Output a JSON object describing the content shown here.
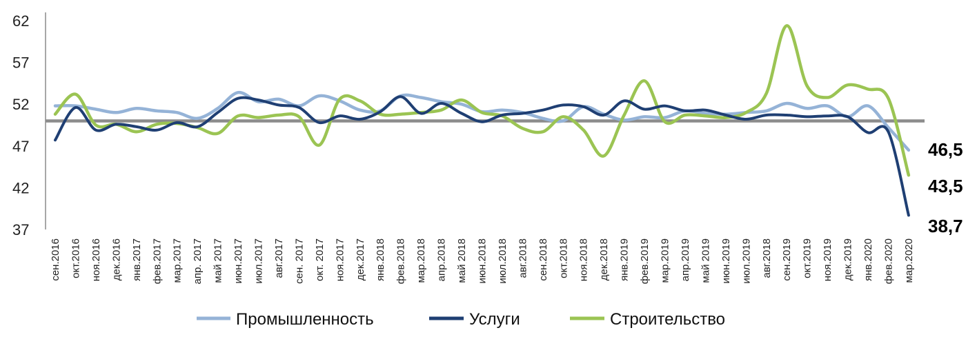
{
  "chart_data": {
    "type": "line",
    "title": "",
    "xlabel": "",
    "ylabel": "",
    "ylim": [
      37,
      62
    ],
    "yticks": [
      37,
      42,
      47,
      52,
      57,
      62
    ],
    "reference_line": 50,
    "grid": false,
    "legend_position": "bottom",
    "x": [
      "сен.2016",
      "окт.2016",
      "ноя.2016",
      "дек.2016",
      "янв.2017",
      "фев.2017",
      "мар.2017",
      "апр. 2017",
      "май 2017",
      "июн.2017",
      "июл.2017",
      "авг.2017",
      "сен. 2017",
      "окт. 2017",
      "ноя.2017",
      "дек.2017",
      "янв.2018",
      "фев.2018",
      "мар.2018",
      "апр.2018",
      "май 2018",
      "июн.2018",
      "июл.2018",
      "авг.2018",
      "сен.2018",
      "окт.2018",
      "ноя.2018",
      "дек.2018",
      "янв.2019",
      "фев.2019",
      "мар.2019",
      "апр.2019",
      "май 2019",
      "июн.2019",
      "июл.2019",
      "авг.2018",
      "сен.2019",
      "окт.2019",
      "ноя.2019",
      "дек.2019",
      "янв.2020",
      "фев.2020",
      "мар.2020"
    ],
    "series": [
      {
        "name": "Промышленность",
        "color": "#95b3d7",
        "values": [
          51.8,
          51.8,
          51.4,
          51.0,
          51.5,
          51.2,
          51.0,
          50.3,
          51.5,
          53.4,
          52.3,
          52.6,
          51.8,
          53.0,
          52.4,
          51.3,
          51.2,
          53.0,
          52.8,
          52.3,
          52.0,
          51.1,
          51.3,
          51.0,
          50.3,
          50.0,
          51.7,
          50.8,
          50.1,
          50.5,
          50.4,
          51.2,
          50.9,
          50.8,
          51.0,
          51.2,
          52.1,
          51.5,
          51.8,
          50.5,
          51.8,
          49.2,
          46.5
        ],
        "end_label": "46,5"
      },
      {
        "name": "Услуги",
        "color": "#1f3f73",
        "values": [
          47.7,
          51.6,
          48.9,
          49.6,
          49.3,
          48.9,
          49.8,
          49.3,
          51.0,
          52.7,
          52.5,
          51.9,
          51.6,
          49.8,
          50.6,
          50.2,
          51.1,
          52.9,
          50.9,
          52.1,
          50.9,
          49.9,
          50.7,
          50.9,
          51.3,
          51.9,
          51.7,
          50.7,
          52.4,
          51.4,
          51.8,
          51.2,
          51.3,
          50.7,
          50.2,
          50.7,
          50.7,
          50.5,
          50.6,
          50.5,
          48.6,
          48.7,
          38.7
        ],
        "end_label": "38,7"
      },
      {
        "name": "Строительство",
        "color": "#9bc453",
        "values": [
          50.8,
          53.2,
          49.5,
          49.6,
          48.7,
          49.6,
          49.7,
          49.2,
          48.5,
          50.6,
          50.4,
          50.7,
          50.5,
          47.1,
          52.6,
          52.4,
          50.8,
          50.8,
          51.0,
          51.3,
          52.5,
          51.0,
          50.6,
          49.1,
          48.7,
          50.5,
          48.9,
          45.8,
          50.7,
          54.8,
          49.9,
          50.7,
          50.6,
          50.4,
          51.0,
          53.3,
          61.4,
          54.2,
          52.8,
          54.3,
          53.8,
          52.7,
          43.5
        ],
        "end_label": "43,5"
      }
    ]
  },
  "legend": [
    {
      "label": "Промышленность"
    },
    {
      "label": "Услуги"
    },
    {
      "label": "Строительство"
    }
  ]
}
